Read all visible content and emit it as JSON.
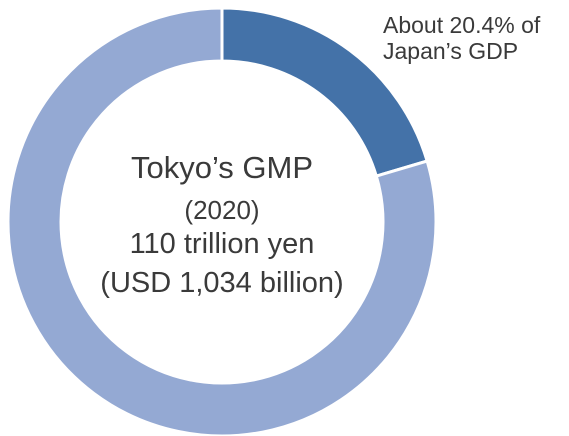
{
  "chart_data": {
    "type": "pie",
    "style": "donut",
    "slices": [
      {
        "value": 20.4,
        "color": "#4472a8"
      },
      {
        "value": 79.6,
        "color": "#94a9d3"
      }
    ],
    "center_text": {
      "line1": "Tokyo’s GMP",
      "line2": "(2020)",
      "line3": "110 trillion yen",
      "line4": "(USD 1,034 billion)"
    },
    "annotation": {
      "line1": "About 20.4% of",
      "line2": "Japan’s GDP"
    }
  }
}
